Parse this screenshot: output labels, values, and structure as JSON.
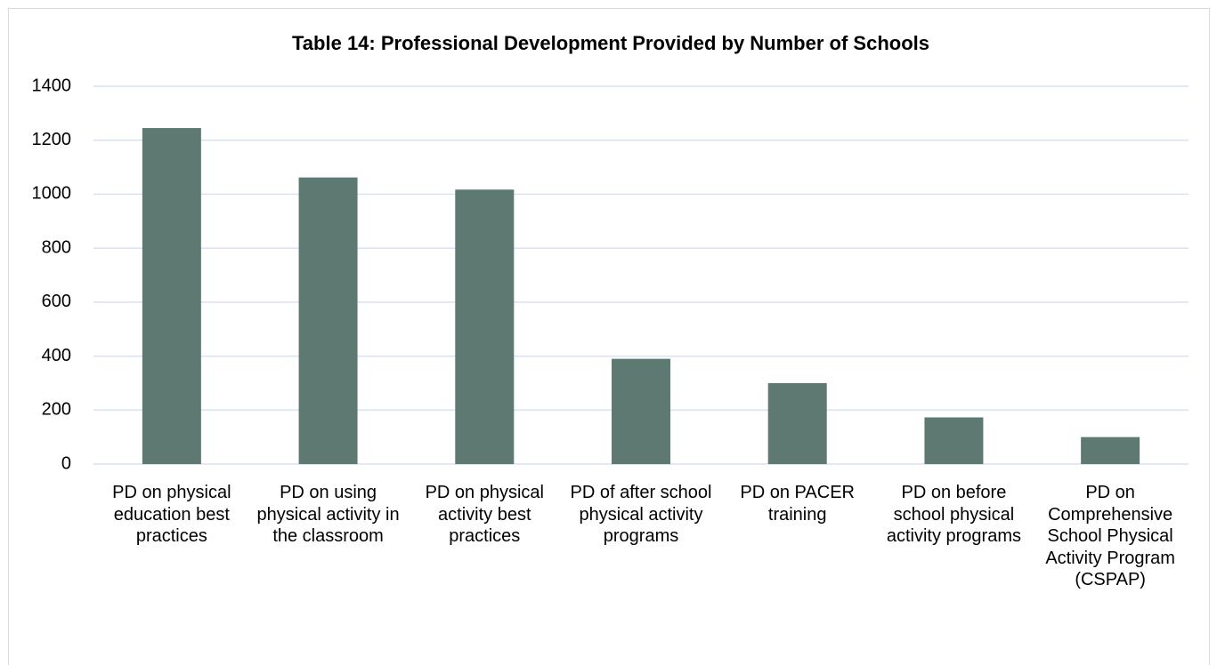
{
  "chart_data": {
    "type": "bar",
    "title": "Table 14: Professional Development Provided by Number of Schools",
    "categories": [
      "PD on physical education best practices",
      "PD on using physical activity in the classroom",
      "PD on physical activity best practices",
      "PD of after school physical activity programs",
      "PD on PACER training",
      "PD on before school physical activity programs",
      "PD on Comprehensive School Physical Activity Program (CSPAP)"
    ],
    "values": [
      1245,
      1062,
      1017,
      390,
      300,
      173,
      100
    ],
    "color": "#5e7872",
    "ylim": [
      0,
      1400
    ],
    "yticks": [
      0,
      200,
      400,
      600,
      800,
      1000,
      1200,
      1400
    ],
    "grid": true
  }
}
